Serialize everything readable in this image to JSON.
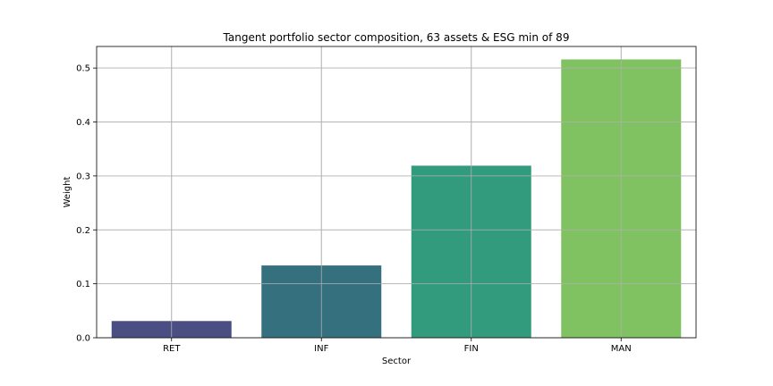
{
  "chart_data": {
    "type": "bar",
    "title": "Tangent portfolio sector composition, 63 assets & ESG min of 89",
    "xlabel": "Sector",
    "ylabel": "Weight",
    "categories": [
      "RET",
      "INF",
      "FIN",
      "MAN"
    ],
    "values": [
      0.031,
      0.134,
      0.319,
      0.516
    ],
    "ylim": [
      0,
      0.54
    ],
    "yticks": [
      0.0,
      0.1,
      0.2,
      0.3,
      0.4,
      0.5
    ],
    "ytick_labels": [
      "0.0",
      "0.1",
      "0.2",
      "0.3",
      "0.4",
      "0.5"
    ],
    "grid": true,
    "colors": [
      "#4a4e83",
      "#35707f",
      "#339b7d",
      "#80c261"
    ]
  }
}
